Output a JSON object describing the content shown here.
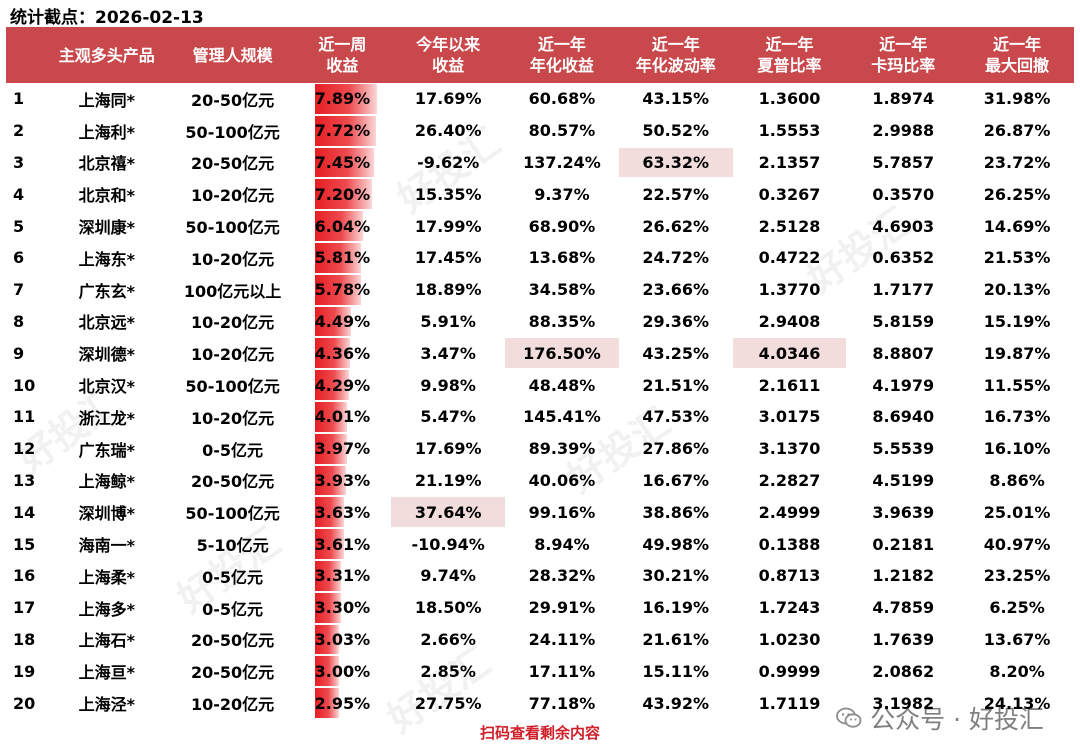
{
  "stat_date": "统计截点：2026-02-13",
  "headers": {
    "product": "主观多头产品",
    "scale": "管理人规模",
    "week": "近一周\n收益",
    "ytd": "今年以来\n收益",
    "ann_return": "近一年\n年化收益",
    "ann_vol": "近一年\n年化波动率",
    "sharpe": "近一年\n夏普比率",
    "calmar": "近一年\n卡玛比率",
    "max_dd": "近一年\n最大回撤"
  },
  "rows": [
    {
      "rank": "1",
      "name": "上海同*",
      "scale": "20-50亿元",
      "week": "7.89%",
      "ytd": "17.69%",
      "ann": "60.68%",
      "vol": "43.15%",
      "sharpe": "1.3600",
      "calmar": "1.8974",
      "dd": "31.98%"
    },
    {
      "rank": "2",
      "name": "上海利*",
      "scale": "50-100亿元",
      "week": "7.72%",
      "ytd": "26.40%",
      "ann": "80.57%",
      "vol": "50.52%",
      "sharpe": "1.5553",
      "calmar": "2.9988",
      "dd": "26.87%"
    },
    {
      "rank": "3",
      "name": "北京禧*",
      "scale": "20-50亿元",
      "week": "7.45%",
      "ytd": "-9.62%",
      "ann": "137.24%",
      "vol": "63.32%",
      "sharpe": "2.1357",
      "calmar": "5.7857",
      "dd": "23.72%"
    },
    {
      "rank": "4",
      "name": "北京和*",
      "scale": "10-20亿元",
      "week": "7.20%",
      "ytd": "15.35%",
      "ann": "9.37%",
      "vol": "22.57%",
      "sharpe": "0.3267",
      "calmar": "0.3570",
      "dd": "26.25%"
    },
    {
      "rank": "5",
      "name": "深圳康*",
      "scale": "50-100亿元",
      "week": "6.04%",
      "ytd": "17.99%",
      "ann": "68.90%",
      "vol": "26.62%",
      "sharpe": "2.5128",
      "calmar": "4.6903",
      "dd": "14.69%"
    },
    {
      "rank": "6",
      "name": "上海东*",
      "scale": "10-20亿元",
      "week": "5.81%",
      "ytd": "17.45%",
      "ann": "13.68%",
      "vol": "24.72%",
      "sharpe": "0.4722",
      "calmar": "0.6352",
      "dd": "21.53%"
    },
    {
      "rank": "7",
      "name": "广东玄*",
      "scale": "100亿元以上",
      "week": "5.78%",
      "ytd": "18.89%",
      "ann": "34.58%",
      "vol": "23.66%",
      "sharpe": "1.3770",
      "calmar": "1.7177",
      "dd": "20.13%"
    },
    {
      "rank": "8",
      "name": "北京远*",
      "scale": "10-20亿元",
      "week": "4.49%",
      "ytd": "5.91%",
      "ann": "88.35%",
      "vol": "29.36%",
      "sharpe": "2.9408",
      "calmar": "5.8159",
      "dd": "15.19%"
    },
    {
      "rank": "9",
      "name": "深圳德*",
      "scale": "10-20亿元",
      "week": "4.36%",
      "ytd": "3.47%",
      "ann": "176.50%",
      "vol": "43.25%",
      "sharpe": "4.0346",
      "calmar": "8.8807",
      "dd": "19.87%"
    },
    {
      "rank": "10",
      "name": "北京汉*",
      "scale": "50-100亿元",
      "week": "4.29%",
      "ytd": "9.98%",
      "ann": "48.48%",
      "vol": "21.51%",
      "sharpe": "2.1611",
      "calmar": "4.1979",
      "dd": "11.55%"
    },
    {
      "rank": "11",
      "name": "浙江龙*",
      "scale": "10-20亿元",
      "week": "4.01%",
      "ytd": "5.47%",
      "ann": "145.41%",
      "vol": "47.53%",
      "sharpe": "3.0175",
      "calmar": "8.6940",
      "dd": "16.73%"
    },
    {
      "rank": "12",
      "name": "广东瑞*",
      "scale": "0-5亿元",
      "week": "3.97%",
      "ytd": "17.69%",
      "ann": "89.39%",
      "vol": "27.86%",
      "sharpe": "3.1370",
      "calmar": "5.5539",
      "dd": "16.10%"
    },
    {
      "rank": "13",
      "name": "上海鲸*",
      "scale": "20-50亿元",
      "week": "3.93%",
      "ytd": "21.19%",
      "ann": "40.06%",
      "vol": "16.67%",
      "sharpe": "2.2827",
      "calmar": "4.5199",
      "dd": "8.86%"
    },
    {
      "rank": "14",
      "name": "深圳博*",
      "scale": "50-100亿元",
      "week": "3.63%",
      "ytd": "37.64%",
      "ann": "99.16%",
      "vol": "38.86%",
      "sharpe": "2.4999",
      "calmar": "3.9639",
      "dd": "25.01%"
    },
    {
      "rank": "15",
      "name": "海南一*",
      "scale": "5-10亿元",
      "week": "3.61%",
      "ytd": "-10.94%",
      "ann": "8.94%",
      "vol": "49.98%",
      "sharpe": "0.1388",
      "calmar": "0.2181",
      "dd": "40.97%"
    },
    {
      "rank": "16",
      "name": "上海柔*",
      "scale": "0-5亿元",
      "week": "3.31%",
      "ytd": "9.74%",
      "ann": "28.32%",
      "vol": "30.21%",
      "sharpe": "0.8713",
      "calmar": "1.2182",
      "dd": "23.25%"
    },
    {
      "rank": "17",
      "name": "上海多*",
      "scale": "0-5亿元",
      "week": "3.30%",
      "ytd": "18.50%",
      "ann": "29.91%",
      "vol": "16.19%",
      "sharpe": "1.7243",
      "calmar": "4.7859",
      "dd": "6.25%"
    },
    {
      "rank": "18",
      "name": "上海石*",
      "scale": "20-50亿元",
      "week": "3.03%",
      "ytd": "2.66%",
      "ann": "24.11%",
      "vol": "21.61%",
      "sharpe": "1.0230",
      "calmar": "1.7639",
      "dd": "13.67%"
    },
    {
      "rank": "19",
      "name": "上海亘*",
      "scale": "20-50亿元",
      "week": "3.00%",
      "ytd": "2.85%",
      "ann": "17.11%",
      "vol": "15.11%",
      "sharpe": "0.9999",
      "calmar": "2.0862",
      "dd": "8.20%"
    },
    {
      "rank": "20",
      "name": "上海泾*",
      "scale": "10-20亿元",
      "week": "2.95%",
      "ytd": "27.75%",
      "ann": "77.18%",
      "vol": "43.92%",
      "sharpe": "1.7119",
      "calmar": "3.1982",
      "dd": "24.13%"
    }
  ],
  "week_bar_max": 7.89,
  "highlights": [
    {
      "row": 3,
      "col": "vol"
    },
    {
      "row": 9,
      "col": "ann"
    },
    {
      "row": 9,
      "col": "sharpe"
    },
    {
      "row": 14,
      "col": "ytd"
    }
  ],
  "colors": {
    "header_bg": "#c9484b",
    "bar": "#e51f24",
    "highlight": "#f2dcdc",
    "footer": "#d0202a"
  },
  "footer_note": "扫码查看剩余内容",
  "brand": {
    "text": "公众号 · 好投汇",
    "icon": "wechat-icon"
  },
  "watermark_text": "好投汇"
}
